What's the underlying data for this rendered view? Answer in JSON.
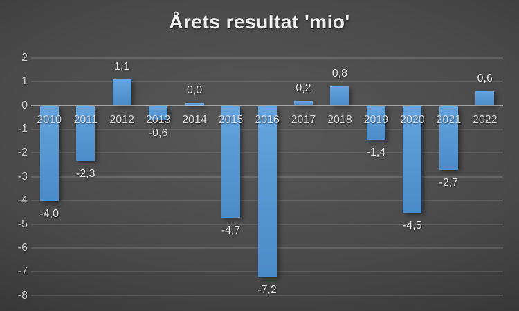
{
  "chart_data": {
    "type": "bar",
    "title": "Årets resultat 'mio'",
    "categories": [
      "2010",
      "2011",
      "2012",
      "2013",
      "2014",
      "2015",
      "2016",
      "2017",
      "2018",
      "2019",
      "2020",
      "2021",
      "2022"
    ],
    "values": [
      -4.0,
      -2.3,
      1.1,
      -0.6,
      0.0,
      -4.7,
      -7.2,
      0.2,
      0.8,
      -1.4,
      -4.5,
      -2.7,
      0.6
    ],
    "value_labels": [
      "-4,0",
      "-2,3",
      "1,1",
      "-0,6",
      "0,0",
      "-4,7",
      "-7,2",
      "0,2",
      "0,8",
      "-1,4",
      "-4,5",
      "-2,7",
      "0,6"
    ],
    "y_ticks": [
      2,
      1,
      0,
      -1,
      -2,
      -3,
      -4,
      -5,
      -6,
      -7,
      -8
    ],
    "y_tick_labels": [
      "2",
      "1",
      "0",
      "-1",
      "-2",
      "-3",
      "-4",
      "-5",
      "-6",
      "-7",
      "-8"
    ],
    "ylim": [
      -8,
      2
    ],
    "xlabel": "",
    "ylabel": "",
    "grid": "horizontal",
    "legend_position": "none",
    "decimal_separator": ",",
    "colors": {
      "bar": "#5b9bd5",
      "background_center": "#585858",
      "background_edge": "#242424",
      "gridline": "rgba(255,255,255,0.13)",
      "axis_line": "rgba(255,255,255,0.50)",
      "title_text": "#efefef",
      "label_text": "#d6d6d6"
    }
  }
}
